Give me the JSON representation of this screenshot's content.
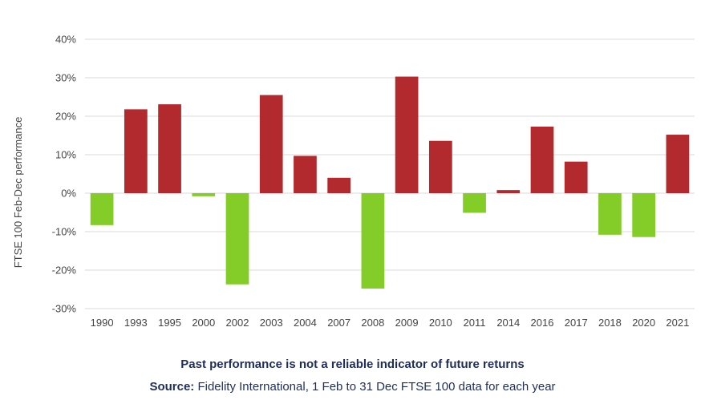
{
  "chart_data": {
    "type": "bar",
    "ylabel": "FTSE 100 Feb-Dec performance",
    "xlabel": "",
    "ylim": [
      -30,
      40
    ],
    "yticks": [
      40,
      30,
      20,
      10,
      0,
      -10,
      -20,
      -30
    ],
    "ytick_labels": [
      "40%",
      "30%",
      "20%",
      "10%",
      "0%",
      "-10%",
      "-20%",
      "-30%"
    ],
    "grid": true,
    "categories": [
      "1990",
      "1993",
      "1995",
      "2000",
      "2002",
      "2003",
      "2004",
      "2007",
      "2008",
      "2009",
      "2010",
      "2011",
      "2014",
      "2016",
      "2017",
      "2018",
      "2020",
      "2021"
    ],
    "values": [
      -8.3,
      21.8,
      23.1,
      -0.8,
      -23.7,
      25.5,
      9.7,
      4.0,
      -24.8,
      30.3,
      13.6,
      -5.1,
      0.8,
      17.3,
      8.2,
      -10.8,
      -11.4,
      15.2
    ],
    "colors": {
      "positive": "#b22a2e",
      "negative": "#84cc27"
    }
  },
  "caption": {
    "title": "Past performance is not a reliable indicator of future returns",
    "source_label": "Source:",
    "source_text": " Fidelity International, 1 Feb to 31 Dec FTSE 100 data for each year"
  }
}
